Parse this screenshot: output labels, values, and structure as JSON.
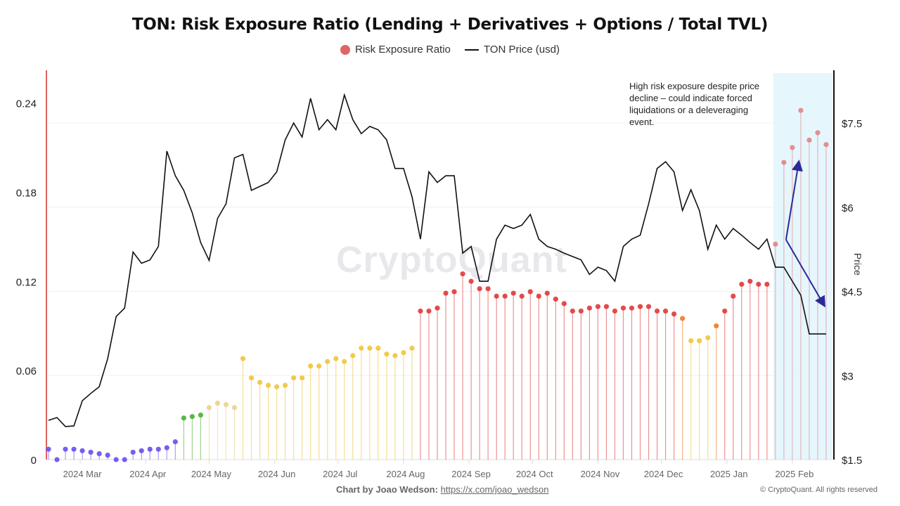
{
  "chart_data": {
    "type": "scatter",
    "title": "TON: Risk Exposure Ratio (Lending + Derivatives + Options / Total TVL)",
    "legend": [
      "Risk Exposure Ratio",
      "TON Price (usd)"
    ],
    "legend_placement": "top",
    "grid": true,
    "watermark": "CryptoQuant",
    "xlim": [
      "2024-02-14",
      "2025-02-20"
    ],
    "x_ticks": [
      {
        "date": "2024-03-01",
        "label": "2024 Mar"
      },
      {
        "date": "2024-04-01",
        "label": "2024 Apr"
      },
      {
        "date": "2024-05-01",
        "label": "2024 May"
      },
      {
        "date": "2024-06-01",
        "label": "2024 Jun"
      },
      {
        "date": "2024-07-01",
        "label": "2024 Jul"
      },
      {
        "date": "2024-08-01",
        "label": "2024 Aug"
      },
      {
        "date": "2024-09-01",
        "label": "2024 Sep"
      },
      {
        "date": "2024-10-01",
        "label": "2024 Oct"
      },
      {
        "date": "2024-11-01",
        "label": "2024 Nov"
      },
      {
        "date": "2024-12-01",
        "label": "2024 Dec"
      },
      {
        "date": "2025-01-01",
        "label": "2025 Jan"
      },
      {
        "date": "2025-02-01",
        "label": "2025 Feb"
      }
    ],
    "y_left": {
      "label": "",
      "lim": [
        0,
        0.262
      ],
      "ticks": [
        0,
        0.06,
        0.12,
        0.18,
        0.24
      ],
      "tick_labels": [
        "0",
        "0.06",
        "0.12",
        "0.18",
        "0.24"
      ]
    },
    "y_right": {
      "label": "Price",
      "lim": [
        1.5,
        8.44
      ],
      "ticks": [
        1.5,
        3,
        4.5,
        6,
        7.5
      ],
      "tick_labels": [
        "$1.5",
        "$3",
        "$4.5",
        "$6",
        "$7.5"
      ]
    },
    "dates": [
      "2024-02-15",
      "2024-02-19",
      "2024-02-23",
      "2024-02-27",
      "2024-03-02",
      "2024-03-06",
      "2024-03-10",
      "2024-03-14",
      "2024-03-18",
      "2024-03-22",
      "2024-03-26",
      "2024-03-30",
      "2024-04-03",
      "2024-04-07",
      "2024-04-11",
      "2024-04-15",
      "2024-04-19",
      "2024-04-23",
      "2024-04-27",
      "2024-05-01",
      "2024-05-05",
      "2024-05-09",
      "2024-05-13",
      "2024-05-17",
      "2024-05-21",
      "2024-05-25",
      "2024-05-29",
      "2024-06-02",
      "2024-06-06",
      "2024-06-10",
      "2024-06-14",
      "2024-06-18",
      "2024-06-22",
      "2024-06-26",
      "2024-06-30",
      "2024-07-04",
      "2024-07-08",
      "2024-07-12",
      "2024-07-16",
      "2024-07-20",
      "2024-07-24",
      "2024-07-28",
      "2024-08-01",
      "2024-08-05",
      "2024-08-09",
      "2024-08-13",
      "2024-08-17",
      "2024-08-21",
      "2024-08-25",
      "2024-08-29",
      "2024-09-02",
      "2024-09-06",
      "2024-09-10",
      "2024-09-14",
      "2024-09-18",
      "2024-09-22",
      "2024-09-26",
      "2024-09-30",
      "2024-10-04",
      "2024-10-08",
      "2024-10-12",
      "2024-10-16",
      "2024-10-20",
      "2024-10-24",
      "2024-10-28",
      "2024-11-01",
      "2024-11-05",
      "2024-11-09",
      "2024-11-13",
      "2024-11-17",
      "2024-11-21",
      "2024-11-25",
      "2024-11-29",
      "2024-12-03",
      "2024-12-07",
      "2024-12-11",
      "2024-12-15",
      "2024-12-19",
      "2024-12-23",
      "2024-12-27",
      "2024-12-31",
      "2025-01-04",
      "2025-01-08",
      "2025-01-12",
      "2025-01-16",
      "2025-01-20",
      "2025-01-24",
      "2025-01-28",
      "2025-02-01",
      "2025-02-05",
      "2025-02-09",
      "2025-02-13",
      "2025-02-17"
    ],
    "series": [
      {
        "name": "Risk Exposure Ratio",
        "axis": "left",
        "style": "lollipop",
        "values": [
          0.007,
          0.0,
          0.007,
          0.007,
          0.006,
          0.005,
          0.004,
          0.003,
          0.0,
          0.0,
          0.005,
          0.006,
          0.007,
          0.007,
          0.008,
          0.012,
          0.028,
          0.029,
          0.03,
          0.035,
          0.038,
          0.037,
          0.035,
          0.068,
          0.055,
          0.052,
          0.05,
          0.049,
          0.05,
          0.055,
          0.055,
          0.063,
          0.063,
          0.066,
          0.068,
          0.066,
          0.07,
          0.075,
          0.075,
          0.075,
          0.071,
          0.07,
          0.072,
          0.075,
          0.1,
          0.1,
          0.102,
          0.112,
          0.113,
          0.125,
          0.12,
          0.115,
          0.115,
          0.11,
          0.11,
          0.112,
          0.11,
          0.113,
          0.11,
          0.112,
          0.108,
          0.105,
          0.1,
          0.1,
          0.102,
          0.103,
          0.103,
          0.1,
          0.102,
          0.102,
          0.103,
          0.103,
          0.1,
          0.1,
          0.098,
          0.095,
          0.08,
          0.08,
          0.082,
          0.09,
          0.1,
          0.11,
          0.118,
          0.12,
          0.118,
          0.118,
          0.145,
          0.2,
          0.21,
          0.235,
          0.215,
          0.22,
          0.212
        ]
      },
      {
        "name": "TON Price (usd)",
        "axis": "right",
        "style": "line",
        "color": "#111111",
        "values": [
          2.2,
          2.25,
          2.09,
          2.1,
          2.55,
          2.68,
          2.8,
          3.3,
          4.05,
          4.2,
          5.2,
          5.0,
          5.06,
          5.3,
          7.0,
          6.56,
          6.3,
          5.9,
          5.37,
          5.05,
          5.8,
          6.06,
          6.88,
          6.94,
          6.3,
          6.37,
          6.44,
          6.63,
          7.2,
          7.5,
          7.25,
          7.94,
          7.38,
          7.56,
          7.38,
          8.0,
          7.56,
          7.31,
          7.44,
          7.38,
          7.2,
          6.69,
          6.69,
          6.19,
          5.43,
          6.63,
          6.44,
          6.56,
          6.56,
          5.18,
          5.3,
          4.68,
          4.68,
          5.43,
          5.68,
          5.62,
          5.68,
          5.87,
          5.43,
          5.3,
          5.25,
          5.18,
          5.12,
          5.06,
          4.8,
          4.93,
          4.87,
          4.68,
          5.3,
          5.43,
          5.5,
          6.06,
          6.69,
          6.81,
          6.63,
          5.94,
          6.31,
          5.94,
          5.25,
          5.68,
          5.43,
          5.62,
          5.5,
          5.37,
          5.25,
          5.43,
          4.93,
          4.93,
          4.68,
          4.43,
          3.74,
          3.74,
          3.74
        ]
      }
    ],
    "color_scale": [
      {
        "max": 0.02,
        "color": "#6a4cf0"
      },
      {
        "max": 0.03,
        "color": "#4caf33"
      },
      {
        "max": 0.045,
        "color": "#e9d38c"
      },
      {
        "max": 0.085,
        "color": "#f0c53a"
      },
      {
        "max": 0.097,
        "color": "#f07a28"
      },
      {
        "max": 1,
        "color": "#e0393a"
      }
    ],
    "highlight": {
      "from": "2025-01-23",
      "to": "2025-02-20",
      "color": "#e6f6fd",
      "point_color": "#e08585"
    },
    "annotation": {
      "text": "High risk exposure despite price decline – could indicate forced liquidations or a deleveraging event.",
      "arrow_color": "#2a2a9a",
      "arrow_origin": {
        "date": "2025-01-29",
        "ratio": 0.148
      },
      "arrow_targets": [
        {
          "date": "2025-02-04",
          "ratio": 0.2
        },
        {
          "date": "2025-02-16",
          "ratio": 0.104
        }
      ]
    }
  },
  "footer": {
    "credit_label": "Chart by Joao Wedson:",
    "credit_link": "https://x.com/joao_wedson",
    "copyright": "© CryptoQuant. All rights reserved"
  }
}
